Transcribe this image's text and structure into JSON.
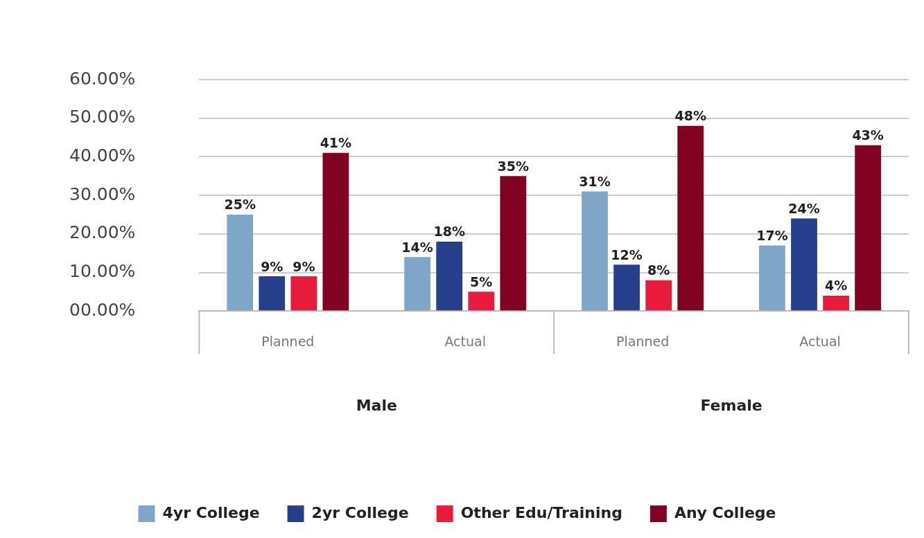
{
  "chart_data": {
    "type": "bar",
    "categories": [
      "Planned",
      "Actual",
      "Planned",
      "Actual"
    ],
    "series": [
      {
        "name": "4yr College",
        "color": "#7fa5c9",
        "values": [
          25,
          14,
          31,
          17
        ],
        "value_labels": [
          "25%",
          "14%",
          "31%",
          "17%"
        ]
      },
      {
        "name": "2yr College",
        "color": "#263f8c",
        "values": [
          9,
          18,
          12,
          24
        ],
        "value_labels": [
          "9%",
          "18%",
          "12%",
          "24%"
        ]
      },
      {
        "name": "Other Edu/Training",
        "color": "#e81c3a",
        "values": [
          9,
          5,
          8,
          4
        ],
        "value_labels": [
          "9%",
          "5%",
          "8%",
          "4%"
        ]
      },
      {
        "name": "Any College",
        "color": "#820022",
        "values": [
          41,
          35,
          48,
          43
        ],
        "value_labels": [
          "41%",
          "35%",
          "48%",
          "43%"
        ]
      }
    ],
    "annotations": [
      "Male",
      "Female"
    ],
    "ylim": [
      0,
      60
    ],
    "yticks": [
      {
        "value": 0,
        "label": "00.00%"
      },
      {
        "value": 10,
        "label": "10.00%"
      },
      {
        "value": 20,
        "label": "20.00%"
      },
      {
        "value": 30,
        "label": "30.00%"
      },
      {
        "value": 40,
        "label": "40.00%"
      },
      {
        "value": 50,
        "label": "50.00%"
      },
      {
        "value": 60,
        "label": "60.00%"
      }
    ],
    "grid": "y",
    "legend": "bottom"
  }
}
